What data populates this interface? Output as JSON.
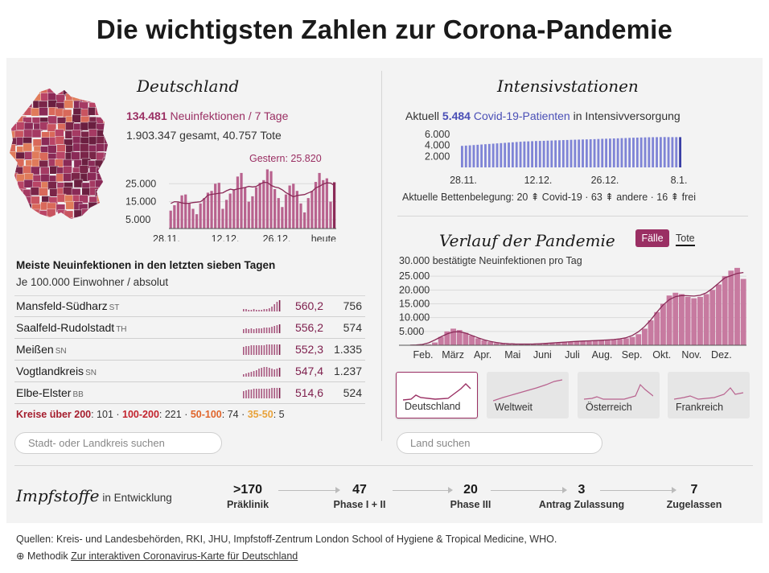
{
  "title": "Die wichtigsten Zahlen zur Corona-Pandemie",
  "deutschland": {
    "heading": "Deutschland",
    "new_infections_value": "134.481",
    "new_infections_label": "Neuinfektionen / 7 Tage",
    "totals": "1.903.347 gesamt, 40.757 Tote",
    "gestern_label": "Gestern: 25.820",
    "y_ticks": [
      "25.000",
      "15.000",
      "5.000"
    ],
    "x_ticks": [
      "28.11.",
      "12.12.",
      "26.12.",
      "heute"
    ]
  },
  "table": {
    "title": "Meiste Neuinfektionen in den letzten sieben Tagen",
    "subtitle": "Je 100.000 Einwohner / absolut",
    "rows": [
      {
        "name": "Mansfeld-Südharz",
        "state": "ST",
        "rate": "560,2",
        "absolute": "756"
      },
      {
        "name": "Saalfeld-Rudolstadt",
        "state": "TH",
        "rate": "556,2",
        "absolute": "574"
      },
      {
        "name": "Meißen",
        "state": "SN",
        "rate": "552,3",
        "absolute": "1.335"
      },
      {
        "name": "Vogtlandkreis",
        "state": "SN",
        "rate": "547,4",
        "absolute": "1.237"
      },
      {
        "name": "Elbe-Elster",
        "state": "BB",
        "rate": "514,6",
        "absolute": "524"
      }
    ],
    "legend": {
      "label1": "Kreise über 200",
      "val1": ": 101",
      "label2": "100-200",
      "val2": ": 221",
      "label3": "50-100",
      "val3": ": 74",
      "label4": "35-50",
      "val4": ": 5",
      "sep": " · "
    },
    "search_placeholder": "Stadt- oder Landkreis suchen"
  },
  "icu": {
    "heading": "Intensivstationen",
    "line_prefix": "Aktuell",
    "line_value": "5.484",
    "line_unit": "Covid-19-Patienten",
    "line_suffix": "in Intensivversorgung",
    "y_ticks": [
      "6.000",
      "4.000",
      "2.000"
    ],
    "x_ticks": [
      "28.11.",
      "12.12.",
      "26.12.",
      "8.1."
    ],
    "beds": "Aktuelle Bettenbelegung: 20 ⇞ Covid-19 · 63 ⇞ andere · 16 ⇞ frei"
  },
  "verlauf": {
    "heading": "Verlauf der Pandemie",
    "btn_faelle": "Fälle",
    "btn_tote": "Tote",
    "chart_label": "30.000 bestätigte Neuinfektionen pro Tag",
    "y_ticks": [
      "25.000",
      "20.000",
      "15.000",
      "10.000",
      "5.000"
    ],
    "x_ticks": [
      "Feb.",
      "März",
      "Apr.",
      "Mai",
      "Juni",
      "Juli",
      "Aug.",
      "Sep.",
      "Okt.",
      "Nov.",
      "Dez."
    ],
    "thumbs": [
      "Deutschland",
      "Weltweit",
      "Österreich",
      "Frankreich"
    ],
    "search_placeholder": "Land suchen"
  },
  "impfstoffe": {
    "title": "Impfstoffe",
    "subtitle": "in Entwicklung",
    "stages": [
      {
        "num": ">170",
        "label": "Präklinik"
      },
      {
        "num": "47",
        "label": "Phase I + II"
      },
      {
        "num": "20",
        "label": "Phase III"
      },
      {
        "num": "3",
        "label": "Antrag Zulassung"
      },
      {
        "num": "7",
        "label": "Zugelassen"
      }
    ]
  },
  "footer": {
    "sources": "Quellen: Kreis- und Landesbehörden, RKI, JHU, Impfstoff-Zentrum London School of Hygiene & Tropical Medicine, WHO.",
    "method_prefix": "⊕ Methodik",
    "link": "Zur interaktiven Coronavirus-Karte für Deutschland"
  },
  "colors": {
    "accent": "#9a2f63",
    "icu_blue": "#4a4fb6",
    "bar": "#b8628e"
  },
  "chart_data": [
    {
      "type": "bar",
      "series": [
        {
          "name": "Neuinfektionen",
          "values": [
            10000,
            13000,
            14500,
            18500,
            19000,
            14000,
            11000,
            8000,
            14000,
            17000,
            20000,
            21000,
            25000,
            25500,
            11000,
            16000,
            19500,
            21500,
            29000,
            31000,
            23000,
            15000,
            18000,
            23000,
            25500,
            27000,
            33000,
            32000,
            22000,
            17000,
            12000,
            19000,
            24000,
            25000,
            21000,
            14000,
            9000,
            17000,
            21000,
            26000,
            31000,
            27000,
            28000,
            15000,
            25820
          ]
        }
      ],
      "ylim": [
        0,
        35000
      ],
      "xticks": [
        "28.11.",
        "12.12.",
        "26.12.",
        "heute"
      ],
      "yticks": [
        "25.000",
        "15.000",
        "5.000"
      ],
      "annotation": "Gestern: 25.820"
    },
    {
      "type": "bar",
      "series": [
        {
          "name": "Covid-19-Patienten",
          "values": [
            3900,
            3950,
            4000,
            4050,
            4100,
            4150,
            4200,
            4250,
            4300,
            4350,
            4400,
            4450,
            4500,
            4550,
            4600,
            4650,
            4700,
            4720,
            4750,
            4780,
            4800,
            4820,
            4850,
            4870,
            4900,
            4920,
            4950,
            4970,
            5000,
            5020,
            5040,
            5060,
            5080,
            5100,
            5120,
            5150,
            5180,
            5200,
            5220,
            5250,
            5270,
            5300,
            5320,
            5350,
            5380,
            5400,
            5420,
            5440,
            5460,
            5470,
            5480,
            5490,
            5500,
            5490,
            5484,
            5484,
            5484
          ]
        }
      ],
      "ylim": [
        0,
        7000
      ],
      "xticks": [
        "28.11.",
        "12.12.",
        "26.12.",
        "8.1."
      ],
      "yticks": [
        "6.000",
        "4.000",
        "2.000"
      ]
    },
    {
      "type": "bar",
      "series": [
        {
          "name": "bestätigte Neuinfektionen pro Tag",
          "values": [
            0,
            0,
            100,
            300,
            1000,
            3000,
            5000,
            6000,
            5500,
            4500,
            3500,
            2500,
            1800,
            1200,
            800,
            600,
            500,
            450,
            400,
            400,
            450,
            500,
            600,
            800,
            1000,
            1200,
            1300,
            1400,
            1500,
            1600,
            1700,
            1800,
            1900,
            2000,
            2200,
            2500,
            3000,
            4000,
            6000,
            9000,
            12000,
            15000,
            18000,
            19000,
            18500,
            17500,
            17000,
            17500,
            18500,
            20000,
            22000,
            25000,
            27000,
            28000,
            24000
          ]
        }
      ],
      "ylim": [
        0,
        30000
      ],
      "xticks": [
        "Feb.",
        "März",
        "Apr.",
        "Mai",
        "Juni",
        "Juli",
        "Aug.",
        "Sep.",
        "Okt.",
        "Nov.",
        "Dez."
      ],
      "yticks": [
        "25.000",
        "20.000",
        "15.000",
        "10.000",
        "5.000"
      ],
      "ylabel": "30.000 bestätigte Neuinfektionen pro Tag"
    }
  ]
}
